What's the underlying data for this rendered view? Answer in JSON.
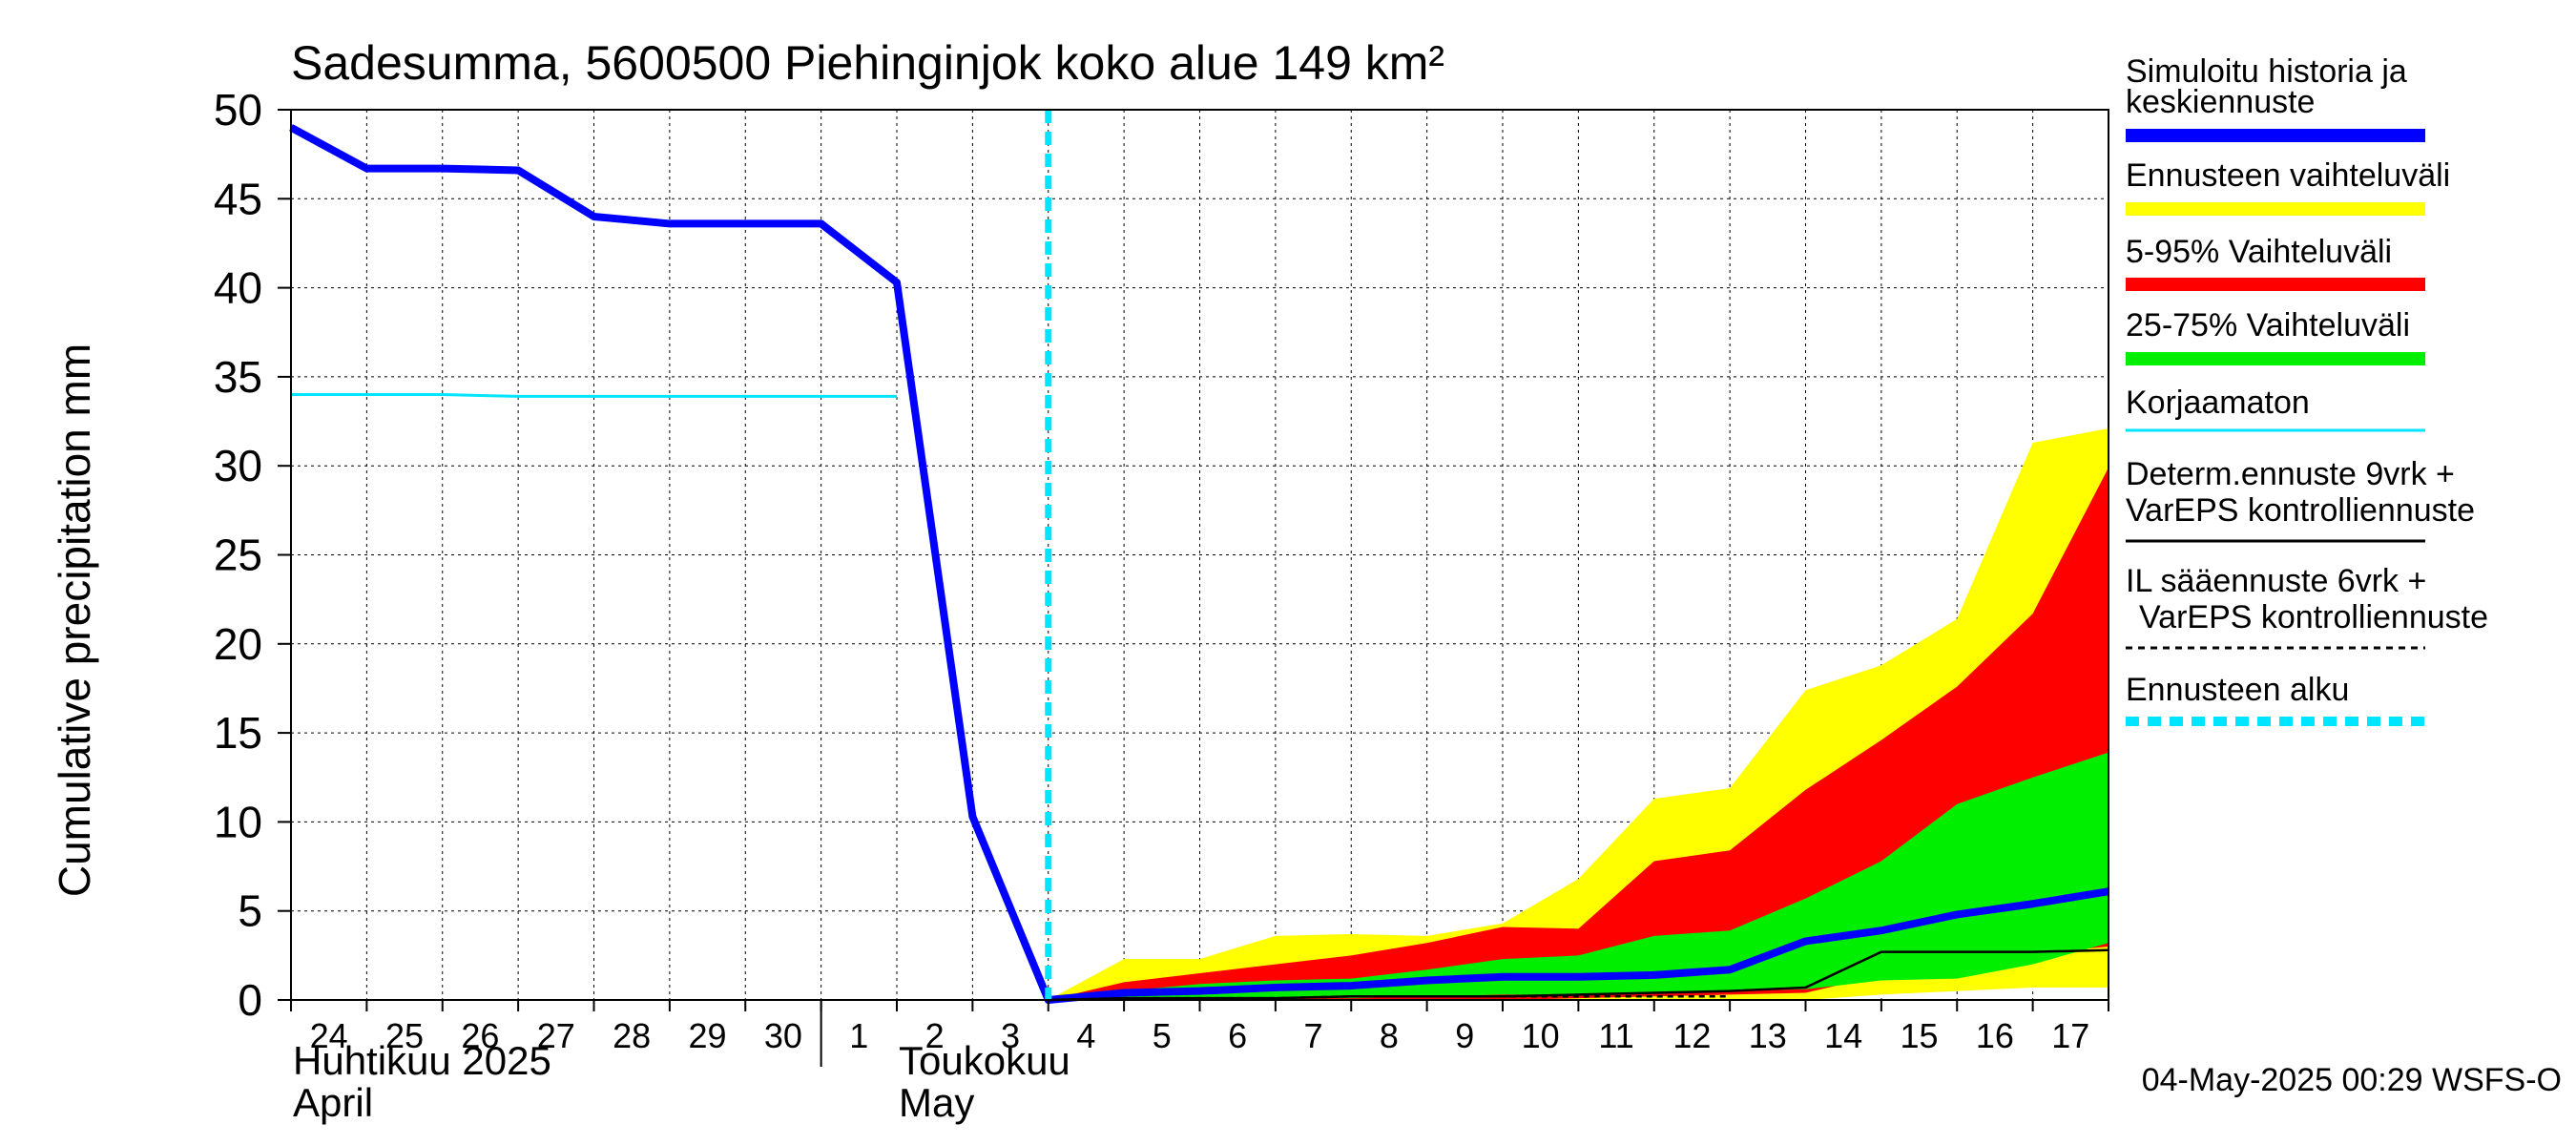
{
  "chart_data": {
    "type": "area",
    "title": "Sadesumma, 5600500 Piehinginjok koko alue 149 km²",
    "ylabel": "Cumulative precipitation   mm",
    "ylim": [
      0,
      50
    ],
    "yticks": [
      0,
      5,
      10,
      15,
      20,
      25,
      30,
      35,
      40,
      45,
      50
    ],
    "xlim": [
      0,
      24
    ],
    "grid": true,
    "x_tick_labels": [
      "24",
      "25",
      "26",
      "27",
      "28",
      "29",
      "30",
      "1",
      "2",
      "3",
      "4",
      "5",
      "6",
      "7",
      "8",
      "9",
      "10",
      "11",
      "12",
      "13",
      "14",
      "15",
      "16",
      "17"
    ],
    "month_labels": [
      {
        "fi": "Huhtikuu  2025",
        "en": "April"
      },
      {
        "fi": "Toukokuu",
        "en": "May"
      }
    ],
    "forecast_start_x": 10,
    "forecast_x": [
      10,
      11,
      12,
      13,
      14,
      15,
      16,
      17,
      18,
      19,
      20,
      21,
      22,
      23,
      24
    ],
    "bands": {
      "range": {
        "upper": [
          0,
          2.3,
          2.3,
          3.6,
          3.7,
          3.6,
          4.3,
          6.8,
          11.3,
          11.9,
          17.4,
          18.8,
          21.4,
          31.3,
          32.1
        ],
        "lower": [
          0,
          0,
          0,
          0,
          0,
          0,
          0,
          0,
          0,
          0,
          0,
          0.3,
          0.5,
          0.7,
          0.7
        ]
      },
      "p5_95": {
        "upper": [
          0,
          1.0,
          1.5,
          2.0,
          2.5,
          3.2,
          4.1,
          4.0,
          7.8,
          8.4,
          11.8,
          14.6,
          17.6,
          21.7,
          29.9
        ],
        "lower": [
          0,
          0,
          0,
          0,
          0,
          0,
          0,
          0.1,
          0.2,
          0.3,
          0.4,
          1.4,
          1.8,
          2.6,
          3.0
        ]
      },
      "p25_75": {
        "upper": [
          0,
          0.5,
          0.9,
          1.1,
          1.2,
          1.7,
          2.3,
          2.5,
          3.6,
          3.9,
          5.7,
          7.8,
          11.0,
          12.5,
          13.9
        ],
        "lower": [
          0,
          0,
          0.1,
          0.1,
          0.1,
          0.2,
          0.3,
          0.3,
          0.4,
          0.5,
          0.6,
          1.1,
          1.2,
          2.0,
          3.2
        ]
      }
    },
    "series": [
      {
        "name": "Simuloitu historia ja keskiennuste",
        "color": "#0000ff",
        "x": [
          0,
          1,
          2,
          3,
          4,
          5,
          6,
          7,
          8,
          9,
          10,
          11,
          12,
          13,
          14,
          15,
          16,
          17,
          18,
          19,
          20,
          21,
          22,
          23,
          24
        ],
        "values": [
          49.0,
          46.7,
          46.7,
          46.6,
          44.0,
          43.6,
          43.6,
          43.6,
          40.3,
          10.3,
          0,
          0.4,
          0.5,
          0.7,
          0.8,
          1.1,
          1.3,
          1.3,
          1.4,
          1.7,
          3.3,
          3.9,
          4.8,
          5.4,
          6.1
        ]
      },
      {
        "name": "Korjaamaton",
        "color": "#00e5ff",
        "x": [
          0,
          1,
          2,
          3,
          4,
          5,
          6,
          7,
          8
        ],
        "values": [
          34.0,
          34.0,
          34.0,
          33.9,
          33.9,
          33.9,
          33.9,
          33.9,
          33.9
        ]
      },
      {
        "name": "Determ.ennuste 9vrk + VarEPS kontrolliennuste",
        "color": "#000000",
        "x": [
          10,
          11,
          12,
          13,
          14,
          15,
          16,
          17,
          18,
          19,
          20,
          21,
          22,
          23,
          24
        ],
        "values": [
          0,
          0.1,
          0.1,
          0.1,
          0.2,
          0.2,
          0.2,
          0.3,
          0.4,
          0.5,
          0.7,
          2.7,
          2.7,
          2.7,
          2.8
        ]
      },
      {
        "name": "IL sääennuste 6vrk  + VarEPS kontrolliennuste",
        "color": "#000000",
        "dashed": true,
        "x": [
          10,
          11,
          12,
          13,
          14,
          15,
          16,
          17,
          18,
          19
        ],
        "values": [
          0,
          0.1,
          0.1,
          0.1,
          0.2,
          0.2,
          0.2,
          0.2,
          0.2,
          0.2
        ]
      }
    ],
    "legend": {
      "placement": "right",
      "items": [
        {
          "label": "Simuloitu historia ja keskiennuste",
          "color": "#0000ff",
          "style": "thick"
        },
        {
          "label": "Ennusteen vaihteluväli",
          "color": "#ffff00",
          "style": "thick"
        },
        {
          "label": "5-95% Vaihteluväli",
          "color": "#ff0000",
          "style": "thick"
        },
        {
          "label": "25-75% Vaihteluväli",
          "color": "#00ee00",
          "style": "thick"
        },
        {
          "label": "Korjaamaton",
          "color": "#00e5ff",
          "style": "thin"
        },
        {
          "label": "Determ.ennuste 9vrk + VarEPS kontrolliennuste",
          "color": "#000000",
          "style": "thin"
        },
        {
          "label": "IL sääennuste 6vrk  + VarEPS kontrolliennuste",
          "color": "#000000",
          "style": "dashed"
        },
        {
          "label": "Ennusteen alku",
          "color": "#00e5ff",
          "style": "thickdashed"
        }
      ]
    },
    "footer": "04-May-2025 00:29 WSFS-O",
    "colors": {
      "mean": "#0000ff",
      "range": "#ffff00",
      "p5_95": "#ff0000",
      "p25_75": "#00ee00",
      "uncorrected": "#00e5ff",
      "forecast_start": "#00e5ff"
    }
  }
}
